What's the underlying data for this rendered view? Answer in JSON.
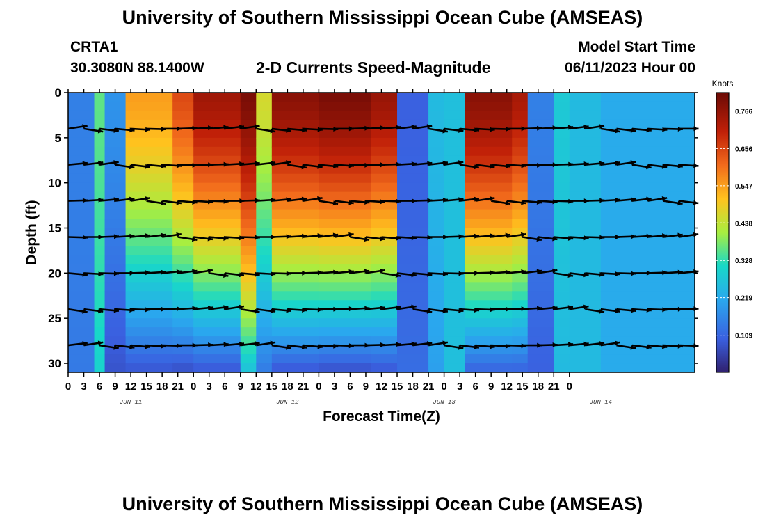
{
  "header": {
    "title": "University of Southern Mississippi Ocean Cube (AMSEAS)",
    "station": "CRTA1",
    "coords": "30.3080N  88.1400W",
    "plot_title": "2-D Currents Speed-Magnitude",
    "model_start_label": "Model Start Time",
    "model_start_value": "06/11/2023 Hour 00"
  },
  "footer": {
    "title": "University of Southern Mississippi Ocean Cube (AMSEAS)"
  },
  "chart_data": {
    "type": "heatmap",
    "title": "2-D Currents Speed-Magnitude",
    "xlabel": "Forecast Time(Z)",
    "ylabel": "Depth (ft)",
    "x_ticks": [
      "0",
      "3",
      "6",
      "9",
      "12",
      "15",
      "18",
      "21",
      "0",
      "3",
      "6",
      "9",
      "12",
      "15",
      "18",
      "21",
      "0",
      "3",
      "6",
      "9",
      "12",
      "15",
      "18",
      "21",
      "0",
      "3",
      "6",
      "9",
      "12",
      "15",
      "18",
      "21",
      "0"
    ],
    "date_labels": [
      {
        "label": "JUN 11",
        "hour": 12
      },
      {
        "label": "JUN 12",
        "hour": 42
      },
      {
        "label": "JUN 13",
        "hour": 72
      },
      {
        "label": "JUN 14",
        "hour": 102
      }
    ],
    "x_range_hours": [
      0,
      120
    ],
    "y_ticks": [
      0,
      5,
      10,
      15,
      20,
      25,
      30
    ],
    "y_range_ft": [
      0,
      31
    ],
    "colorbar": {
      "unit": "Knots",
      "ticks": [
        0.766,
        0.656,
        0.547,
        0.438,
        0.328,
        0.219,
        0.109
      ],
      "range": [
        0,
        0.82
      ]
    },
    "vector_depths_ft": [
      4,
      8,
      12,
      16,
      20,
      24,
      28
    ],
    "speed_columns": [
      {
        "hours": [
          0,
          5
        ],
        "surf": 0.15,
        "deep": 0.14
      },
      {
        "hours": [
          5,
          7
        ],
        "surf": 0.36,
        "deep": 0.3
      },
      {
        "hours": [
          7,
          11
        ],
        "surf": 0.18,
        "deep": 0.08
      },
      {
        "hours": [
          11,
          20
        ],
        "surf": 0.55,
        "deep": 0.08
      },
      {
        "hours": [
          20,
          24
        ],
        "surf": 0.65,
        "deep": 0.07
      },
      {
        "hours": [
          24,
          33
        ],
        "surf": 0.75,
        "deep": 0.08
      },
      {
        "hours": [
          33,
          36
        ],
        "surf": 0.8,
        "deep": 0.26
      },
      {
        "hours": [
          36,
          39
        ],
        "surf": 0.46,
        "deep": 0.14
      },
      {
        "hours": [
          39,
          48
        ],
        "surf": 0.78,
        "deep": 0.08
      },
      {
        "hours": [
          48,
          58
        ],
        "surf": 0.8,
        "deep": 0.07
      },
      {
        "hours": [
          58,
          63
        ],
        "surf": 0.76,
        "deep": 0.08
      },
      {
        "hours": [
          63,
          69
        ],
        "surf": 0.1,
        "deep": 0.12
      },
      {
        "hours": [
          69,
          72
        ],
        "surf": 0.25,
        "deep": 0.2
      },
      {
        "hours": [
          72,
          76
        ],
        "surf": 0.26,
        "deep": 0.26
      },
      {
        "hours": [
          76,
          85
        ],
        "surf": 0.78,
        "deep": 0.1
      },
      {
        "hours": [
          85,
          88
        ],
        "surf": 0.74,
        "deep": 0.1
      },
      {
        "hours": [
          88,
          93
        ],
        "surf": 0.15,
        "deep": 0.1
      },
      {
        "hours": [
          93,
          96
        ],
        "surf": 0.28,
        "deep": 0.25
      },
      {
        "hours": [
          96,
          102
        ],
        "surf": 0.25,
        "deep": 0.25
      },
      {
        "hours": [
          102,
          120
        ],
        "surf": 0.22,
        "deep": 0.22
      }
    ]
  }
}
